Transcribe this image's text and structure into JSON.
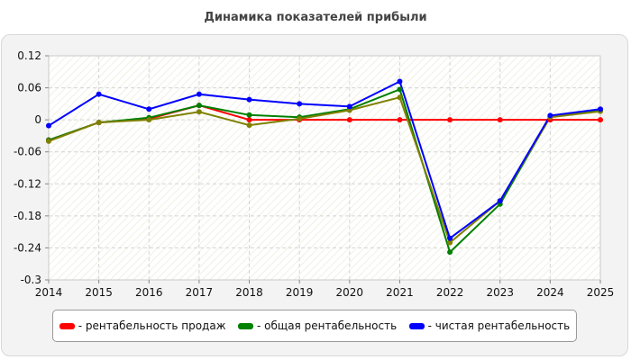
{
  "chart_data": {
    "type": "line",
    "title": "Динамика показателей прибыли",
    "xlabel": "",
    "ylabel": "",
    "x": [
      "2014",
      "2015",
      "2016",
      "2017",
      "2018",
      "2019",
      "2020",
      "2021",
      "2022",
      "2023",
      "2024",
      "2025"
    ],
    "ylim": [
      -0.3,
      0.12
    ],
    "yticks": [
      "0.12",
      "0.06",
      "0",
      "-0.06",
      "-0.12",
      "-0.18",
      "-0.24",
      "-0.3"
    ],
    "grid": true,
    "legend_position": "bottom",
    "series": [
      {
        "name": "- рентабельность продаж",
        "color": "#ff0000",
        "values": [
          -0.038,
          -0.005,
          0.002,
          0.027,
          0.0,
          0.0,
          0.0,
          0.0,
          0.0,
          0.0,
          0.0,
          0.0
        ]
      },
      {
        "name": "- общая рентабельность",
        "color": "#008000",
        "values": [
          -0.038,
          -0.005,
          0.004,
          0.027,
          0.009,
          0.005,
          0.02,
          0.057,
          -0.248,
          -0.158,
          0.006,
          0.018
        ]
      },
      {
        "name": "- чистая рентабельность",
        "color": "#0000ff",
        "values": [
          -0.011,
          0.048,
          0.02,
          0.048,
          0.038,
          0.03,
          0.025,
          0.072,
          -0.222,
          -0.152,
          0.008,
          0.02
        ]
      },
      {
        "name": "",
        "color": "#808000",
        "values": [
          -0.04,
          -0.005,
          0.0,
          0.015,
          -0.01,
          0.002,
          0.018,
          0.042,
          -0.23,
          -0.152,
          0.005,
          0.016
        ]
      }
    ]
  }
}
